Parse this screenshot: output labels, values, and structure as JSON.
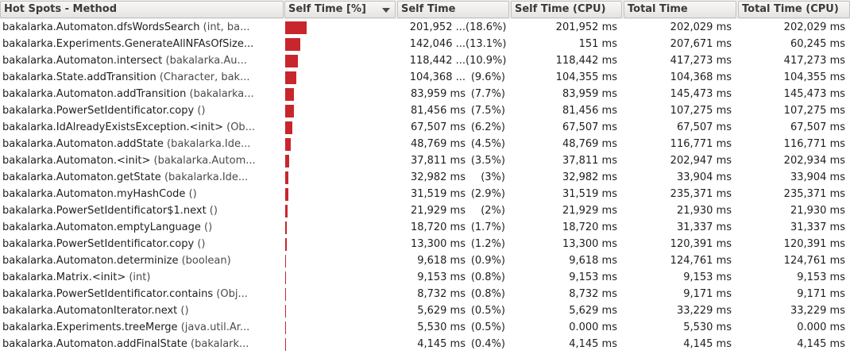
{
  "columns": [
    {
      "label": "Hot Spots - Method"
    },
    {
      "label": "Self Time [%]",
      "sort_icon": "sort-desc-icon"
    },
    {
      "label": "Self Time"
    },
    {
      "label": "Self Time (CPU)"
    },
    {
      "label": "Total Time"
    },
    {
      "label": "Total Time (CPU)"
    }
  ],
  "bar_color": "#c8262c",
  "rows": [
    {
      "method": "bakalarka.Automaton.dfsWordsSearch",
      "args": " (int, ba...",
      "self": "201,952 ...",
      "pct": "(18.6%)",
      "pct_value": 18.6,
      "cpu": "201,952 ms",
      "total": "202,029 ms",
      "total_cpu": "202,029 ms"
    },
    {
      "method": "bakalarka.Experiments.GenerateAllNFAsOfSize...",
      "args": "",
      "self": "142,046 ...",
      "pct": "(13.1%)",
      "pct_value": 13.1,
      "cpu": "151 ms",
      "total": "207,671 ms",
      "total_cpu": "60,245 ms"
    },
    {
      "method": "bakalarka.Automaton.intersect",
      "args": " (bakalarka.Au...",
      "self": "118,442 ...",
      "pct": "(10.9%)",
      "pct_value": 10.9,
      "cpu": "118,442 ms",
      "total": "417,273 ms",
      "total_cpu": "417,273 ms"
    },
    {
      "method": "bakalarka.State.addTransition",
      "args": " (Character, bak...",
      "self": "104,368 ...",
      "pct": "(9.6%)",
      "pct_value": 9.6,
      "cpu": "104,355 ms",
      "total": "104,368 ms",
      "total_cpu": "104,355 ms"
    },
    {
      "method": "bakalarka.Automaton.addTransition",
      "args": " (bakalarka...",
      "self": "83,959 ms",
      "pct": "(7.7%)",
      "pct_value": 7.7,
      "cpu": "83,959 ms",
      "total": "145,473 ms",
      "total_cpu": "145,473 ms"
    },
    {
      "method": "bakalarka.PowerSetIdentificator.copy",
      "args": " ()",
      "self": "81,456 ms",
      "pct": "(7.5%)",
      "pct_value": 7.5,
      "cpu": "81,456 ms",
      "total": "107,275 ms",
      "total_cpu": "107,275 ms"
    },
    {
      "method": "bakalarka.IdAlreadyExistsException.<init>",
      "args": " (Ob...",
      "self": "67,507 ms",
      "pct": "(6.2%)",
      "pct_value": 6.2,
      "cpu": "67,507 ms",
      "total": "67,507 ms",
      "total_cpu": "67,507 ms"
    },
    {
      "method": "bakalarka.Automaton.addState",
      "args": " (bakalarka.Ide...",
      "self": "48,769 ms",
      "pct": "(4.5%)",
      "pct_value": 4.5,
      "cpu": "48,769 ms",
      "total": "116,771 ms",
      "total_cpu": "116,771 ms"
    },
    {
      "method": "bakalarka.Automaton.<init>",
      "args": " (bakalarka.Autom...",
      "self": "37,811 ms",
      "pct": "(3.5%)",
      "pct_value": 3.5,
      "cpu": "37,811 ms",
      "total": "202,947 ms",
      "total_cpu": "202,934 ms"
    },
    {
      "method": "bakalarka.Automaton.getState",
      "args": " (bakalarka.Ide...",
      "self": "32,982 ms",
      "pct": "(3%)",
      "pct_value": 3.0,
      "cpu": "32,982 ms",
      "total": "33,904 ms",
      "total_cpu": "33,904 ms"
    },
    {
      "method": "bakalarka.Automaton.myHashCode",
      "args": " ()",
      "self": "31,519 ms",
      "pct": "(2.9%)",
      "pct_value": 2.9,
      "cpu": "31,519 ms",
      "total": "235,371 ms",
      "total_cpu": "235,371 ms"
    },
    {
      "method": "bakalarka.PowerSetIdentificator$1.next",
      "args": " ()",
      "self": "21,929 ms",
      "pct": "(2%)",
      "pct_value": 2.0,
      "cpu": "21,929 ms",
      "total": "21,930 ms",
      "total_cpu": "21,930 ms"
    },
    {
      "method": "bakalarka.Automaton.emptyLanguage",
      "args": " ()",
      "self": "18,720 ms",
      "pct": "(1.7%)",
      "pct_value": 1.7,
      "cpu": "18,720 ms",
      "total": "31,337 ms",
      "total_cpu": "31,337 ms"
    },
    {
      "method": "bakalarka.PowerSetIdentificator.copy",
      "args": " ()",
      "self": "13,300 ms",
      "pct": "(1.2%)",
      "pct_value": 1.2,
      "cpu": "13,300 ms",
      "total": "120,391 ms",
      "total_cpu": "120,391 ms"
    },
    {
      "method": "bakalarka.Automaton.determinize",
      "args": " (boolean)",
      "self": "9,618 ms",
      "pct": "(0.9%)",
      "pct_value": 0.9,
      "cpu": "9,618 ms",
      "total": "124,761 ms",
      "total_cpu": "124,761 ms"
    },
    {
      "method": "bakalarka.Matrix.<init>",
      "args": " (int)",
      "self": "9,153 ms",
      "pct": "(0.8%)",
      "pct_value": 0.8,
      "cpu": "9,153 ms",
      "total": "9,153 ms",
      "total_cpu": "9,153 ms"
    },
    {
      "method": "bakalarka.PowerSetIdentificator.contains",
      "args": " (Obj...",
      "self": "8,732 ms",
      "pct": "(0.8%)",
      "pct_value": 0.8,
      "cpu": "8,732 ms",
      "total": "9,171 ms",
      "total_cpu": "9,171 ms"
    },
    {
      "method": "bakalarka.AutomatonIterator.next",
      "args": " ()",
      "self": "5,629 ms",
      "pct": "(0.5%)",
      "pct_value": 0.5,
      "cpu": "5,629 ms",
      "total": "33,229 ms",
      "total_cpu": "33,229 ms"
    },
    {
      "method": "bakalarka.Experiments.treeMerge",
      "args": " (java.util.Ar...",
      "self": "5,530 ms",
      "pct": "(0.5%)",
      "pct_value": 0.5,
      "cpu": "0.000 ms",
      "total": "5,530 ms",
      "total_cpu": "0.000 ms"
    },
    {
      "method": "bakalarka.Automaton.addFinalState",
      "args": " (bakalark...",
      "self": "4,145 ms",
      "pct": "(0.4%)",
      "pct_value": 0.4,
      "cpu": "4,145 ms",
      "total": "4,145 ms",
      "total_cpu": "4,145 ms"
    }
  ]
}
